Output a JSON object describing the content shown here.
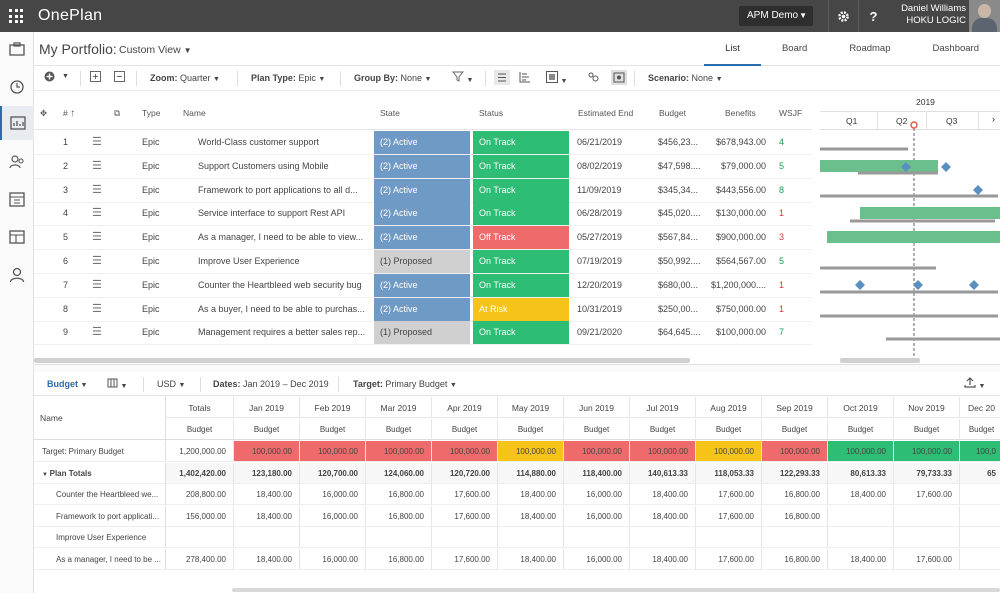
{
  "app": {
    "name": "OnePlan",
    "workspace": "APM Demo",
    "user_name": "Daniel Williams",
    "user_org": "HOKU LOGIC"
  },
  "header": {
    "title": "My Portfolio:",
    "view": "Custom View"
  },
  "tabs": [
    {
      "label": "List"
    },
    {
      "label": "Board"
    },
    {
      "label": "Roadmap"
    },
    {
      "label": "Dashboard"
    }
  ],
  "toolbar": {
    "zoom_label": "Zoom:",
    "zoom_value": "Quarter",
    "plantype_label": "Plan Type:",
    "plantype_value": "Epic",
    "groupby_label": "Group By:",
    "groupby_value": "None",
    "scenario_label": "Scenario:",
    "scenario_value": "None"
  },
  "columns": {
    "num": "#",
    "type": "Type",
    "name": "Name",
    "state": "State",
    "status": "Status",
    "end": "Estimated End",
    "budget": "Budget",
    "benefits": "Benefits",
    "wsjf": "WSJF"
  },
  "colors": {
    "active": "#6f9ac6",
    "proposed": "#d0d0d0",
    "on_track": "#2dbd74",
    "off_track": "#ef6b6b",
    "at_risk": "#f6c419",
    "bar": "#6abf8c",
    "milestone": "#5a8fc0"
  },
  "rows": [
    {
      "num": "1",
      "type": "Epic",
      "name": "World-Class customer support",
      "state": "(2) Active",
      "state_color": "#6f9ac6",
      "state_text": "#ffffff",
      "status": "On Track",
      "status_color": "#2dbd74",
      "end": "06/21/2019",
      "budget": "$456,23...",
      "benefits": "$678,943.00",
      "wsjf": "4",
      "wsjf_color": "#1a9b55"
    },
    {
      "num": "2",
      "type": "Epic",
      "name": "Support Customers using Mobile",
      "state": "(2) Active",
      "state_color": "#6f9ac6",
      "state_text": "#ffffff",
      "status": "On Track",
      "status_color": "#2dbd74",
      "end": "08/02/2019",
      "budget": "$47,598....",
      "benefits": "$79,000.00",
      "wsjf": "5",
      "wsjf_color": "#1a9b55"
    },
    {
      "num": "3",
      "type": "Epic",
      "name": "Framework to port applications to all d...",
      "state": "(2) Active",
      "state_color": "#6f9ac6",
      "state_text": "#ffffff",
      "status": "On Track",
      "status_color": "#2dbd74",
      "end": "11/09/2019",
      "budget": "$345,34...",
      "benefits": "$443,556.00",
      "wsjf": "8",
      "wsjf_color": "#1a9b55"
    },
    {
      "num": "4",
      "type": "Epic",
      "name": "Service interface to support Rest API",
      "state": "(2) Active",
      "state_color": "#6f9ac6",
      "state_text": "#ffffff",
      "status": "On Track",
      "status_color": "#2dbd74",
      "end": "06/28/2019",
      "budget": "$45,020....",
      "benefits": "$130,000.00",
      "wsjf": "1",
      "wsjf_color": "#d23c3c"
    },
    {
      "num": "5",
      "type": "Epic",
      "name": "As a manager, I need to be able to view...",
      "state": "(2) Active",
      "state_color": "#6f9ac6",
      "state_text": "#ffffff",
      "status": "Off Track",
      "status_color": "#ef6b6b",
      "end": "05/27/2019",
      "budget": "$567,84...",
      "benefits": "$900,000.00",
      "wsjf": "3",
      "wsjf_color": "#d23c3c"
    },
    {
      "num": "6",
      "type": "Epic",
      "name": "Improve User Experience",
      "state": "(1) Proposed",
      "state_color": "#d0d0d0",
      "state_text": "#444444",
      "status": "On Track",
      "status_color": "#2dbd74",
      "end": "07/19/2019",
      "budget": "$50,992....",
      "benefits": "$564,567.00",
      "wsjf": "5",
      "wsjf_color": "#1a9b55"
    },
    {
      "num": "7",
      "type": "Epic",
      "name": "Counter the Heartbleed web security bug",
      "state": "(2) Active",
      "state_color": "#6f9ac6",
      "state_text": "#ffffff",
      "status": "On Track",
      "status_color": "#2dbd74",
      "end": "12/20/2019",
      "budget": "$680,00...",
      "benefits": "$1,200,000....",
      "wsjf": "1",
      "wsjf_color": "#d23c3c"
    },
    {
      "num": "8",
      "type": "Epic",
      "name": "As a buyer, I need to be able to purchas...",
      "state": "(2) Active",
      "state_color": "#6f9ac6",
      "state_text": "#ffffff",
      "status": "At Risk",
      "status_color": "#f6c419",
      "end": "10/31/2019",
      "budget": "$250,00...",
      "benefits": "$750,000.00",
      "wsjf": "1",
      "wsjf_color": "#d23c3c"
    },
    {
      "num": "9",
      "type": "Epic",
      "name": "Management requires a better sales rep...",
      "state": "(1) Proposed",
      "state_color": "#d0d0d0",
      "state_text": "#444444",
      "status": "On Track",
      "status_color": "#2dbd74",
      "end": "09/21/2020",
      "budget": "$64,645....",
      "benefits": "$100,000.00",
      "wsjf": "7",
      "wsjf_color": "#1a9b55"
    }
  ],
  "gantt": {
    "year": "2019",
    "quarters": [
      "Q1",
      "Q2",
      "Q3"
    ]
  },
  "bottom_toolbar": {
    "view_label": "Budget",
    "currency": "USD",
    "dates_label": "Dates:",
    "dates_value": "Jan 2019 – Dec 2019",
    "target_label": "Target:",
    "target_value": "Primary Budget"
  },
  "budget_table": {
    "name_header": "Name",
    "col_headers": [
      "Totals",
      "Jan 2019",
      "Feb 2019",
      "Mar 2019",
      "Apr 2019",
      "May 2019",
      "Jun 2019",
      "Jul 2019",
      "Aug 2019",
      "Sep 2019",
      "Oct 2019",
      "Nov 2019",
      "Dec 20"
    ],
    "sub_header": "Budget",
    "rows": [
      {
        "name": "Target: Primary Budget",
        "bold": false,
        "values": [
          "1,200,000.00",
          "100,000.00",
          "100,000.00",
          "100,000.00",
          "100,000.00",
          "100,000.00",
          "100,000.00",
          "100,000.00",
          "100,000.00",
          "100,000.00",
          "100,000.00",
          "100,000.00",
          "100,0"
        ],
        "colors": [
          "",
          "#ef6b6b",
          "#ef6b6b",
          "#ef6b6b",
          "#ef6b6b",
          "#f6c419",
          "#ef6b6b",
          "#ef6b6b",
          "#f6c419",
          "#ef6b6b",
          "#2dbd74",
          "#2dbd74",
          "#2dbd74"
        ]
      },
      {
        "name": "Plan Totals",
        "bold": true,
        "values": [
          "1,402,420.00",
          "123,180.00",
          "120,700.00",
          "124,060.00",
          "120,720.00",
          "114,880.00",
          "118,400.00",
          "140,613.33",
          "118,053.33",
          "122,293.33",
          "80,613.33",
          "79,733.33",
          "65"
        ]
      },
      {
        "name": "Counter the Heartbleed we...",
        "bold": false,
        "values": [
          "208,800.00",
          "18,400.00",
          "16,000.00",
          "16,800.00",
          "17,600.00",
          "18,400.00",
          "16,000.00",
          "18,400.00",
          "17,600.00",
          "16,800.00",
          "18,400.00",
          "17,600.00",
          ""
        ]
      },
      {
        "name": "Framework to port applicati...",
        "bold": false,
        "values": [
          "156,000.00",
          "18,400.00",
          "16,000.00",
          "16,800.00",
          "17,600.00",
          "18,400.00",
          "16,000.00",
          "18,400.00",
          "17,600.00",
          "16,800.00",
          "",
          "",
          ""
        ]
      },
      {
        "name": "Improve User Experience",
        "bold": false,
        "values": [
          "",
          "",
          "",
          "",
          "",
          "",
          "",
          "",
          "",
          "",
          "",
          "",
          ""
        ]
      },
      {
        "name": "As a manager, I need to be ...",
        "bold": false,
        "values": [
          "278,400.00",
          "18,400.00",
          "16,000.00",
          "16,800.00",
          "17,600.00",
          "18,400.00",
          "16,000.00",
          "18,400.00",
          "17,600.00",
          "16,800.00",
          "18,400.00",
          "17,600.00",
          ""
        ]
      }
    ]
  }
}
